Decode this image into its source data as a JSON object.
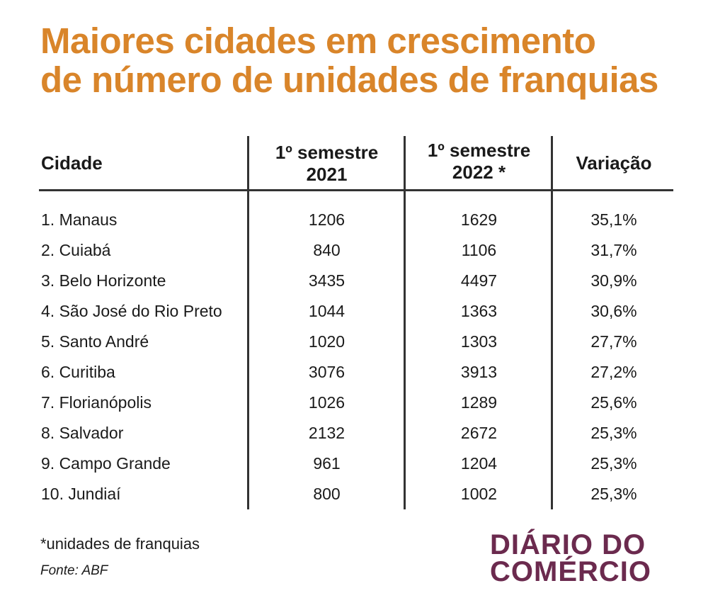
{
  "title_line1": "Maiores cidades em crescimento",
  "title_line2": "de número de unidades de franquias",
  "headers": {
    "city": "Cidade",
    "col2021_l1": "1º semestre",
    "col2021_l2": "2021",
    "col2022_l1": "1º semestre",
    "col2022_l2": "2022 *",
    "variation": "Variação"
  },
  "chart_data": {
    "type": "table",
    "title": "Maiores cidades em crescimento de número de unidades de franquias",
    "columns": [
      "Cidade",
      "1º semestre 2021",
      "1º semestre 2022 *",
      "Variação"
    ],
    "rows": [
      [
        "1. Manaus",
        "1206",
        "1629",
        "35,1%"
      ],
      [
        "2. Cuiabá",
        "840",
        "1106",
        "31,7%"
      ],
      [
        "3. Belo Horizonte",
        "3435",
        "4497",
        "30,9%"
      ],
      [
        "4. São José do Rio Preto",
        "1044",
        "1363",
        "30,6%"
      ],
      [
        "5. Santo André",
        "1020",
        "1303",
        "27,7%"
      ],
      [
        "6. Curitiba",
        "3076",
        "3913",
        "27,2%"
      ],
      [
        "7. Florianópolis",
        "1026",
        "1289",
        "25,6%"
      ],
      [
        "8. Salvador",
        "2132",
        "2672",
        "25,3%"
      ],
      [
        "9. Campo Grande",
        "961",
        "1204",
        "25,3%"
      ],
      [
        "10. Jundiaí",
        "800",
        "1002",
        "25,3%"
      ]
    ]
  },
  "footnote": "*unidades de franquias",
  "source": "Fonte: ABF",
  "logo": {
    "line1": "DIÁRIO DO",
    "line2": "COMÉRCIO"
  },
  "colors": {
    "title": "#d9852a",
    "logo": "#6b2a4e"
  }
}
